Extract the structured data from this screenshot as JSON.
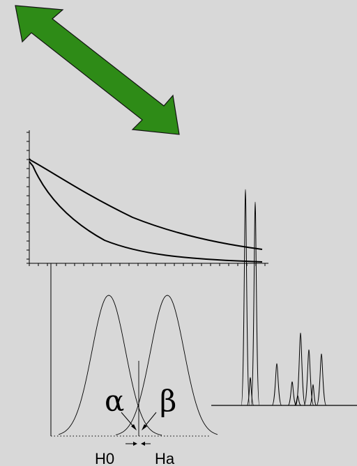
{
  "colors": {
    "background": "#d8d8d8",
    "arrow_fill": "#2e8b17",
    "arrow_stroke": "#111111",
    "ink": "#000000"
  },
  "labels": {
    "alpha": "α",
    "beta": "β",
    "h0": "H0",
    "ha": "Ha"
  }
}
